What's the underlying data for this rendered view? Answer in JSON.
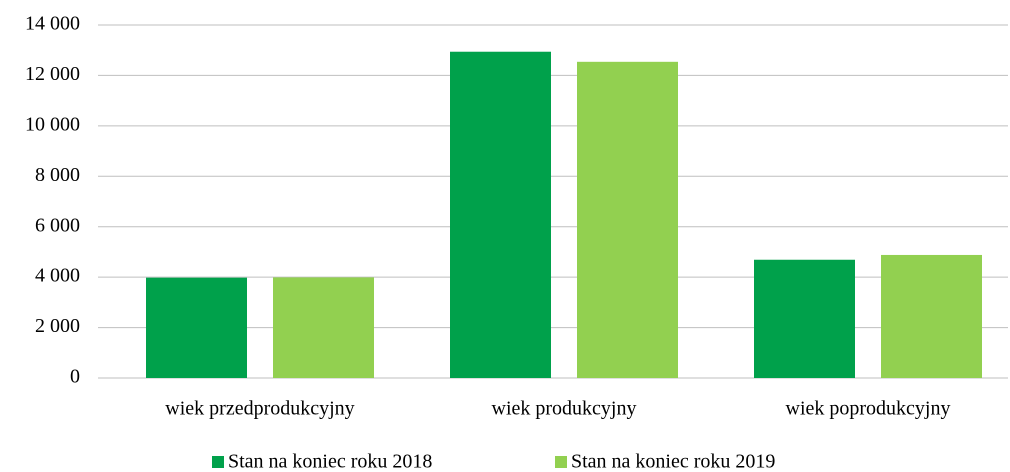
{
  "chart_data": {
    "type": "bar",
    "categories": [
      "wiek przedprodukcyjny",
      "wiek produkcyjny",
      "wiek poprodukcyjny"
    ],
    "series": [
      {
        "name": "Stan na koniec roku 2018",
        "color": "#00a14b",
        "values": [
          3980,
          12940,
          4690
        ]
      },
      {
        "name": "Stan na koniec roku 2019",
        "color": "#92d050",
        "values": [
          3990,
          12540,
          4880
        ]
      }
    ],
    "ylim": [
      0,
      14000
    ],
    "yticks": [
      0,
      {
        "value": 2000,
        "label": "2 000"
      },
      {
        "value": 4000,
        "label": "4 000"
      },
      {
        "value": 6000,
        "label": "6 000"
      },
      {
        "value": 8000,
        "label": "8 000"
      },
      {
        "value": 10000,
        "label": "10 000"
      },
      {
        "value": 12000,
        "label": "12 000"
      },
      {
        "value": 14000,
        "label": "14 000"
      }
    ],
    "grid": true,
    "legend": "bottom"
  }
}
